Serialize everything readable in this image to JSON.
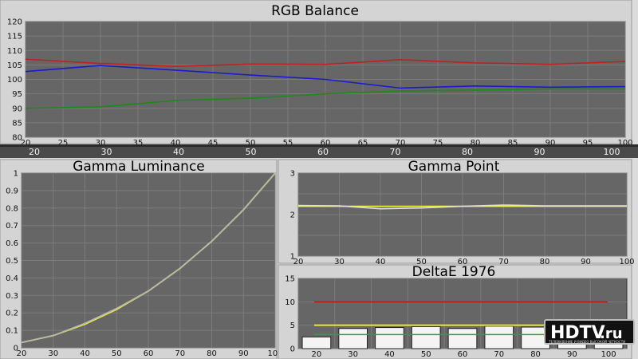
{
  "chart_data": [
    {
      "type": "line",
      "title": "RGB Balance",
      "x": [
        20,
        30,
        40,
        50,
        60,
        70,
        80,
        90,
        100
      ],
      "xticks": [
        20,
        25,
        30,
        35,
        40,
        45,
        50,
        55,
        60,
        65,
        70,
        75,
        80,
        85,
        90,
        95,
        100
      ],
      "xbar_ticks": [
        20,
        30,
        40,
        50,
        60,
        70,
        80,
        90,
        100
      ],
      "yticks": [
        80,
        85,
        90,
        95,
        100,
        105,
        110,
        115,
        120
      ],
      "ylim": [
        80,
        120
      ],
      "xlim": [
        20,
        100
      ],
      "grid": true,
      "series": [
        {
          "color": "#c02020",
          "values": [
            107,
            105.5,
            104.5,
            105.3,
            105.2,
            106.8,
            105.7,
            105.2,
            106.2
          ]
        },
        {
          "color": "#1a1ad0",
          "values": [
            102.7,
            104.8,
            103.2,
            101.5,
            100,
            97,
            97.7,
            97.3,
            97.5
          ]
        },
        {
          "color": "#1a8a1a",
          "values": [
            90,
            90.5,
            92.7,
            93.5,
            95,
            96,
            96.3,
            96.7,
            96.7
          ]
        }
      ]
    },
    {
      "type": "line",
      "title": "Gamma Luminance",
      "x": [
        20,
        30,
        40,
        50,
        60,
        70,
        80,
        90,
        100
      ],
      "xticks": [
        20,
        30,
        40,
        50,
        60,
        70,
        80,
        90,
        100
      ],
      "yticks": [
        0,
        0.1,
        0.2,
        0.3,
        0.4,
        0.5,
        0.6,
        0.7,
        0.8,
        0.9,
        1
      ],
      "ylim": [
        0,
        1
      ],
      "xlim": [
        20,
        100
      ],
      "grid": true,
      "series": [
        {
          "color": "#f0f040",
          "values": [
            0.03,
            0.07,
            0.135,
            0.22,
            0.325,
            0.455,
            0.61,
            0.79,
            1.0
          ]
        },
        {
          "color": "#b8b8a8",
          "values": [
            0.03,
            0.07,
            0.14,
            0.225,
            0.325,
            0.455,
            0.61,
            0.79,
            1.0
          ]
        }
      ]
    },
    {
      "type": "line",
      "title": "Gamma Point",
      "x": [
        20,
        30,
        40,
        50,
        60,
        70,
        80,
        90,
        100
      ],
      "xticks": [
        20,
        30,
        40,
        50,
        60,
        70,
        80,
        90,
        100
      ],
      "yticks": [
        1,
        1.5,
        2,
        2.5,
        3
      ],
      "ytick_labels": [
        "1",
        "",
        "2",
        "",
        "3"
      ],
      "ylim": [
        1,
        3
      ],
      "xlim": [
        20,
        100
      ],
      "grid": true,
      "series": [
        {
          "color": "#f0f040",
          "values": [
            2.2,
            2.2,
            2.2,
            2.2,
            2.2,
            2.2,
            2.2,
            2.2,
            2.2
          ]
        },
        {
          "color": "#e0e0d0",
          "values": [
            2.22,
            2.21,
            2.14,
            2.16,
            2.2,
            2.23,
            2.21,
            2.21,
            2.21
          ]
        }
      ]
    },
    {
      "type": "bar",
      "title": "DeltaE 1976",
      "categories": [
        20,
        30,
        40,
        50,
        60,
        70,
        80,
        90,
        100
      ],
      "values": [
        2.5,
        4.3,
        4.5,
        4.7,
        4.3,
        4.8,
        4.6,
        4.6,
        4.5
      ],
      "yticks": [
        0,
        5,
        10,
        15
      ],
      "ylim": [
        0,
        15
      ],
      "red_line": 10,
      "yellow_line": 5,
      "green_line": 3,
      "grid": true
    }
  ],
  "watermark": {
    "brand_main": "HDTV",
    "brand_suffix": ".ru",
    "tagline": "ТЕЛЕВИДЕНИЕ И ВИДЕО ВЫСОКОЙ ЧЕТКОСТИ"
  }
}
